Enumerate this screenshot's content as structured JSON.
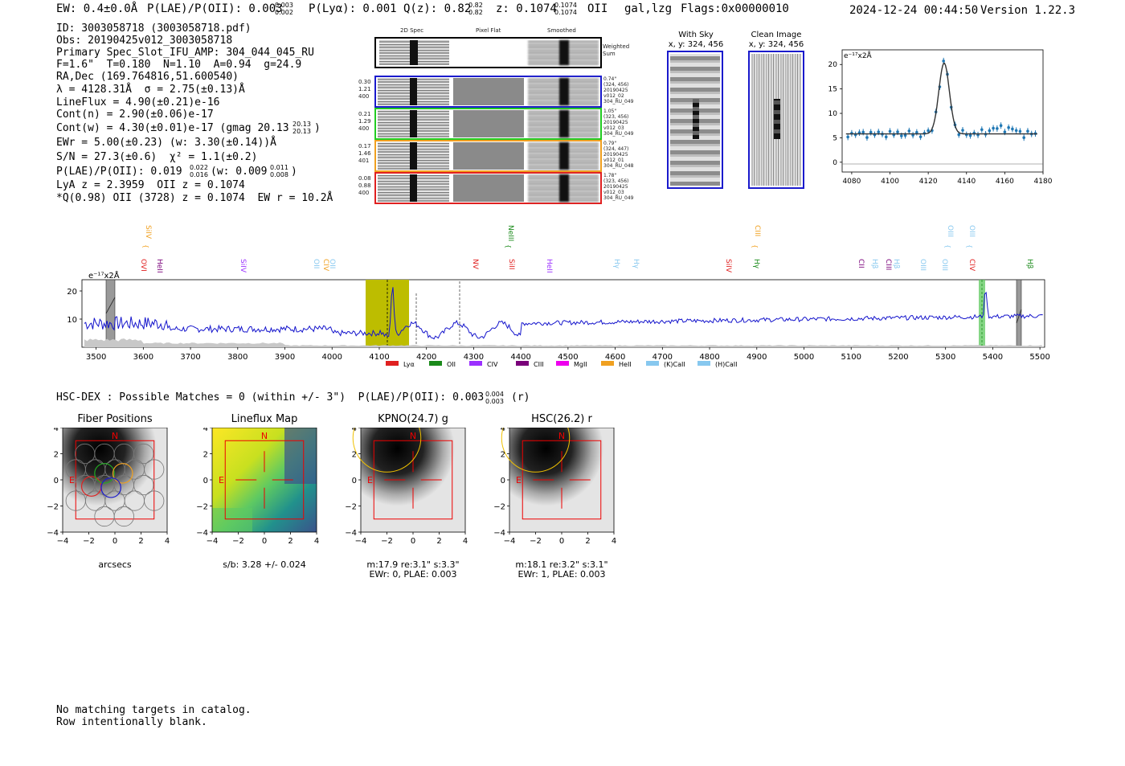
{
  "header": {
    "ew": "EW: 0.4±0.0Å",
    "plae": "P(LAE)/P(OII): 0.003",
    "plae_hi": "0.003",
    "plae_lo": "0.002",
    "plya": "P(Lyα): 0.001",
    "qz": "Q(z): 0.82",
    "qz_hi": "0.82",
    "qz_lo": "0.82",
    "z": "z: 0.1074",
    "z_hi": "0.1074",
    "z_lo": "0.1074",
    "line": "OII",
    "cls": "gal,lzg",
    "flags": "Flags:0x00000010",
    "datetime": "2024-12-24 00:44:50",
    "version": "Version 1.22.3"
  },
  "info": {
    "l1": "ID: 3003058718 (3003058718.pdf)",
    "l2": "Obs: 20190425v012_3003058718",
    "l3": "Primary Spec_Slot_IFU_AMP: 304_044_045_RU",
    "l4": "F=1.6\"  T=0.180  N=1.10  A=0.94  g=24.9",
    "l5": "RA,Dec (169.764816,51.600540)",
    "l6": "λ = 4128.31Å  σ = 2.75(±0.13)Å",
    "l7": "LineFlux = 4.90(±0.21)e-16",
    "l8": "Cont(n) = 2.90(±0.06)e-17",
    "l9": "Cont(w) = 4.30(±0.01)e-17 (gmag 20.13",
    "l9_hi": "20.13",
    "l9_lo": "20.13",
    "l10": "EWr = 5.00(±0.23) (w: 3.30(±0.14))Å",
    "l11": "S/N = 27.3(±0.6)  χ² = 1.1(±0.2)",
    "l12": "P(LAE)/P(OII): 0.019",
    "l12_hi": "0.022",
    "l12_lo": "0.016",
    "l12_w": "(w: 0.009",
    "l12_w_hi": "0.011",
    "l12_w_lo": "0.008",
    "l13": "LyA z = 2.3959  OII z = 0.1074",
    "l14": "*Q(0.98) OII (3728) z = 0.1074  EW r = 10.2Å"
  },
  "cutouts": {
    "col_2d": "2D Spec",
    "col_flat": "Pixel Flat",
    "col_smooth": "Smoothed",
    "weighted": "Weighted Sum",
    "rows": [
      {
        "l1": "0.30",
        "l2": "1.21",
        "l3": "400",
        "r1": "0.74\"",
        "r2": "(324, 456)",
        "r3": "20190425",
        "r4": "v012_02",
        "r5": "304_RU_049",
        "color": "#1a1acc"
      },
      {
        "l1": "0.21",
        "l2": "1.29",
        "l3": "400",
        "r1": "1.05\"",
        "r2": "(323, 456)",
        "r3": "20190425",
        "r4": "v012_03",
        "r5": "304_RU_049",
        "color": "#22cc22"
      },
      {
        "l1": "0.17",
        "l2": "1.46",
        "l3": "401",
        "r1": "0.79\"",
        "r2": "(324, 447)",
        "r3": "20190425",
        "r4": "v012_01",
        "r5": "304_RU_048",
        "color": "#f0a020"
      },
      {
        "l1": "0.08",
        "l2": "0.88",
        "l3": "400",
        "r1": "1.78\"",
        "r2": "(323, 456)",
        "r3": "20190425",
        "r4": "v012_03",
        "r5": "304_RU_049",
        "color": "#e02020"
      }
    ],
    "with_sky": "With Sky",
    "with_sky_xy": "x, y: 324, 456",
    "clean": "Clean Image",
    "clean_xy": "x, y: 324, 456"
  },
  "zoom_plot": {
    "unit": "e⁻¹⁷x2Å",
    "yticks": [
      "0",
      "5",
      "10",
      "15",
      "20"
    ],
    "xticks": [
      "4080",
      "4100",
      "4120",
      "4140",
      "4160",
      "4180"
    ]
  },
  "spectrum": {
    "unit": "e⁻¹⁷x2Å",
    "yticks": [
      "10",
      "20"
    ],
    "xticks": [
      "3500",
      "3600",
      "3700",
      "3800",
      "3900",
      "4000",
      "4100",
      "4200",
      "4300",
      "4400",
      "4500",
      "4600",
      "4700",
      "4800",
      "4900",
      "5000",
      "5100",
      "5200",
      "5300",
      "5400",
      "5500"
    ],
    "top_lines": [
      {
        "t": "SiIV",
        "c": "#f0a020",
        "x": 122
      },
      {
        "t": "NeIII",
        "c": "#1a8a1a",
        "x": 573
      },
      {
        "t": "CIII",
        "c": "#f0a020",
        "x": 880
      },
      {
        "t": "OIII",
        "c": "#87c8ef",
        "x": 1120
      },
      {
        "t": "OIII",
        "c": "#87c8ef",
        "x": 1147
      },
      {
        "t": "OII",
        "c": "#ee00ee",
        "x": 1291
      }
    ],
    "low_lines": [
      {
        "t": "OVI",
        "c": "#e02020",
        "x": 120
      },
      {
        "t": "HeII",
        "c": "#7a007a",
        "x": 140
      },
      {
        "t": "SiIV",
        "c": "#9b30ff",
        "x": 244
      },
      {
        "t": "OII",
        "c": "#87c8ef",
        "x": 335
      },
      {
        "t": "CIV",
        "c": "#f0a020",
        "x": 347
      },
      {
        "t": "OII",
        "c": "#87c8ef",
        "x": 355
      },
      {
        "t": "NV",
        "c": "#e02020",
        "x": 533
      },
      {
        "t": "SiII",
        "c": "#e02020",
        "x": 578
      },
      {
        "t": "HeII",
        "c": "#9b30ff",
        "x": 625
      },
      {
        "t": "Hγ",
        "c": "#87c8ef",
        "x": 709
      },
      {
        "t": "Hγ",
        "c": "#87c8ef",
        "x": 733
      },
      {
        "t": "SiIV",
        "c": "#e02020",
        "x": 848
      },
      {
        "t": "Hγ",
        "c": "#1a8a1a",
        "x": 883
      },
      {
        "t": "CII",
        "c": "#7a007a",
        "x": 1013
      },
      {
        "t": "Hβ",
        "c": "#87c8ef",
        "x": 1030
      },
      {
        "t": "CIII",
        "c": "#7a007a",
        "x": 1047
      },
      {
        "t": "Hβ",
        "c": "#87c8ef",
        "x": 1057
      },
      {
        "t": "OIII",
        "c": "#87c8ef",
        "x": 1090
      },
      {
        "t": "OIII",
        "c": "#87c8ef",
        "x": 1117
      },
      {
        "t": "CIV",
        "c": "#e02020",
        "x": 1151
      },
      {
        "t": "Hβ",
        "c": "#1a8a1a",
        "x": 1223
      },
      {
        "t": "OIII",
        "c": "#1a8a1a",
        "x": 1287
      }
    ],
    "legend": [
      {
        "t": "Lyα",
        "c": "#e02020"
      },
      {
        "t": "OII",
        "c": "#1a8a1a"
      },
      {
        "t": "CIV",
        "c": "#9b30ff"
      },
      {
        "t": "CIII",
        "c": "#7a007a"
      },
      {
        "t": "MgII",
        "c": "#ee00ee"
      },
      {
        "t": "HeII",
        "c": "#f0a020"
      },
      {
        "t": "(K)CaII",
        "c": "#87c8ef"
      },
      {
        "t": "(H)CaII",
        "c": "#87c8ef"
      }
    ]
  },
  "hsc": {
    "line": "HSC-DEX : Possible Matches = 0 (within +/- 3\")  P(LAE)/P(OII): 0.003",
    "hi": "0.004",
    "lo": "0.003",
    "band": "(r)"
  },
  "panels": [
    {
      "title": "Fiber Positions",
      "cap1": "arcsecs",
      "cap2": ""
    },
    {
      "title": "Lineflux Map",
      "cap1": "s/b: 3.28 +/- 0.024",
      "cap2": ""
    },
    {
      "title": "KPNO(24.7) g",
      "cap1": "m:17.9  re:3.1\"  s:3.3\"",
      "cap2": "EWr: 0, PLAE: 0.003"
    },
    {
      "title": "HSC(26.2) r",
      "cap1": "m:18.1  re:3.2\"  s:3.1\"",
      "cap2": "EWr: 1, PLAE: 0.003"
    }
  ],
  "panel_ticks": {
    "y": [
      "4",
      "2",
      "0",
      "−2",
      "−4"
    ],
    "x": [
      "−4",
      "−2",
      "0",
      "2",
      "4"
    ],
    "n": "N",
    "e": "E"
  },
  "footer": {
    "l1": "No matching targets in catalog.",
    "l2": "Row intentionally blank."
  }
}
